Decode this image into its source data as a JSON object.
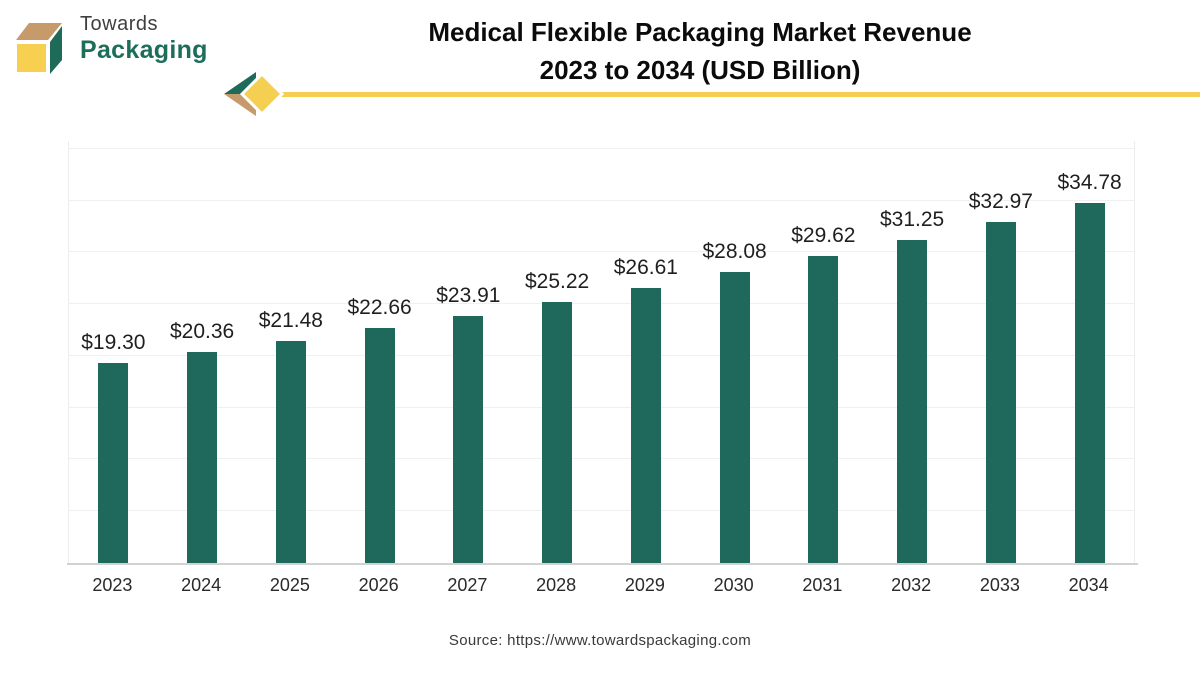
{
  "brand": {
    "name_line1": "Towards",
    "name_line2": "Packaging",
    "colors": {
      "green": "#1E6B5A",
      "tan": "#C69A6A",
      "yellow": "#F7D052"
    }
  },
  "header": {
    "title_line1": "Medical Flexible Packaging Market Revenue",
    "title_line2": "2023 to 2034 (USD Billion)",
    "accent_line_color": "#F5CF52"
  },
  "chart_data": {
    "type": "bar",
    "title": "Medical Flexible Packaging Market Revenue 2023 to 2034 (USD Billion)",
    "categories": [
      "2023",
      "2024",
      "2025",
      "2026",
      "2027",
      "2028",
      "2029",
      "2030",
      "2031",
      "2032",
      "2033",
      "2034"
    ],
    "values": [
      19.3,
      20.36,
      21.48,
      22.66,
      23.91,
      25.22,
      26.61,
      28.08,
      29.62,
      31.25,
      32.97,
      34.78
    ],
    "value_labels": [
      "$19.30",
      "$20.36",
      "$21.48",
      "$22.66",
      "$23.91",
      "$25.22",
      "$26.61",
      "$28.08",
      "$29.62",
      "$31.25",
      "$32.97",
      "$34.78"
    ],
    "xlabel": "",
    "ylabel": "",
    "ylim": [
      0,
      40
    ],
    "gridline_step": 5,
    "grid": true,
    "legend": false,
    "bar_color": "#1E695C",
    "gridline_color": "#F0F0F0",
    "axis_color": "#D2D2D2"
  },
  "footer": {
    "source": "Source: https://www.towardspackaging.com"
  }
}
